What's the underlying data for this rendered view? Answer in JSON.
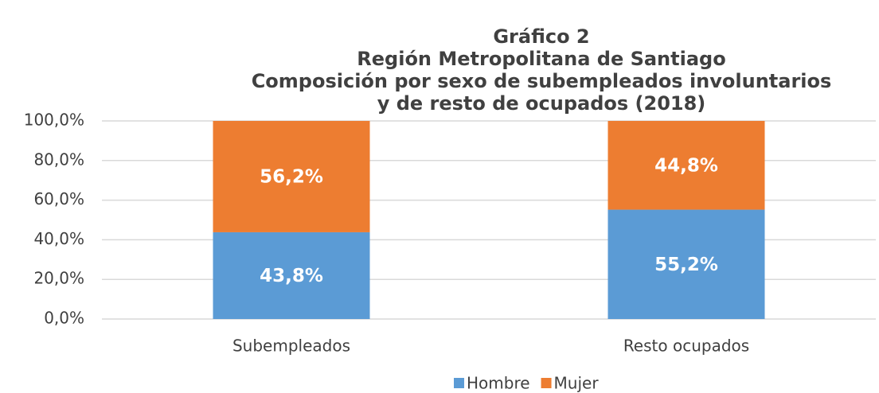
{
  "chart_data": {
    "type": "stacked_bar",
    "title": [
      "Gráfico 2",
      "Región Metropolitana de Santiago",
      "Composición por sexo de subempleados involuntarios",
      "y de resto de ocupados (2018)"
    ],
    "categories": [
      "Subempleados",
      "Resto ocupados"
    ],
    "series": [
      {
        "name": "Hombre",
        "color": "#5b9bd5",
        "values": [
          43.8,
          55.2
        ],
        "value_labels": [
          "43,8%",
          "55,2%"
        ]
      },
      {
        "name": "Mujer",
        "color": "#ed7d31",
        "values": [
          56.2,
          44.8
        ],
        "value_labels": [
          "56,2%",
          "44,8%"
        ]
      }
    ],
    "ylim": [
      0,
      100
    ],
    "yticks": [
      {
        "value": 0,
        "label": "0,0%"
      },
      {
        "value": 20,
        "label": "20,0%"
      },
      {
        "value": 40,
        "label": "40,0%"
      },
      {
        "value": 60,
        "label": "60,0%"
      },
      {
        "value": 80,
        "label": "80,0%"
      },
      {
        "value": 100,
        "label": "100,0%"
      }
    ],
    "grid": true,
    "legend": "bottom"
  }
}
